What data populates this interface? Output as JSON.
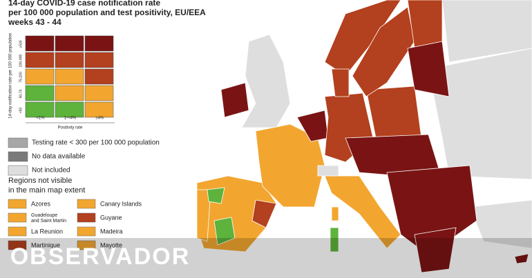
{
  "title": [
    "14-day COVID-19 case notification rate",
    "per 100 000 population and test positivity, EU/EEA",
    "weeks 43 - 44"
  ],
  "matrix": {
    "y_label": "14-day notification rate per 100 000 population",
    "row_labels": [
      "≥500",
      "200-499",
      "75-200",
      "50-74",
      "<50"
    ],
    "col_labels": [
      "<1%",
      "1-<4%",
      "≥4%"
    ],
    "x_label": "Positivity rate",
    "colors": [
      [
        "#7a1414",
        "#7a1414",
        "#7a1414"
      ],
      [
        "#b3401e",
        "#b3401e",
        "#b3401e"
      ],
      [
        "#f2a630",
        "#f2a630",
        "#b3401e"
      ],
      [
        "#5db33c",
        "#f2a630",
        "#f2a630"
      ],
      [
        "#5db33c",
        "#5db33c",
        "#f2a630"
      ]
    ]
  },
  "legend": [
    {
      "label": "Testing rate < 300 per 100 000 population",
      "color": "#a6a6a6"
    },
    {
      "label": "No data available",
      "color": "#7a7a7a"
    },
    {
      "label": "Not included",
      "color": "#dedede"
    }
  ],
  "regions_heading": [
    "Regions not visible",
    "in the main map extent"
  ],
  "regions": [
    {
      "label": "Azores",
      "color": "#f2a630"
    },
    {
      "label": "Canary Islands",
      "color": "#f2a630"
    },
    {
      "label": "Guadeloupe and Saint Martin",
      "color": "#f2a630"
    },
    {
      "label": "Guyane",
      "color": "#b3401e"
    },
    {
      "label": "La Reunion",
      "color": "#f2a630"
    },
    {
      "label": "Madeira",
      "color": "#f2a630"
    },
    {
      "label": "Martinique",
      "color": "#b3401e"
    },
    {
      "label": "Mayotte",
      "color": "#f2a630"
    }
  ],
  "watermark": "OBSERVADOR"
}
